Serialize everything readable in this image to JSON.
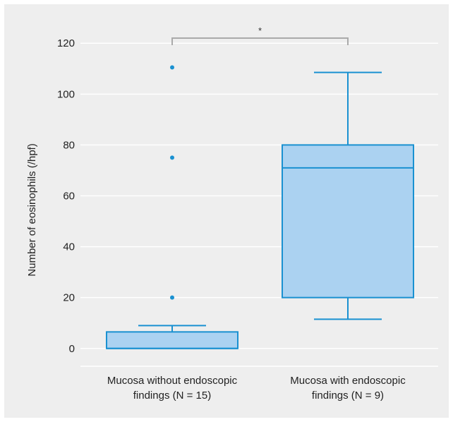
{
  "chart_data": {
    "type": "box",
    "title": "",
    "xlabel": "",
    "ylabel": "Number of eosinophils (/hpf)",
    "ylim": [
      -7,
      127
    ],
    "yticks": [
      0,
      20,
      40,
      60,
      80,
      100,
      120
    ],
    "grid": "horizontal",
    "categories": [
      [
        "Mucosa without endoscopic",
        "findings (N = 15)"
      ],
      [
        "Mucosa with endoscopic",
        "findings (N = 9)"
      ]
    ],
    "boxes": [
      {
        "whisker_low": 0,
        "q1": 0,
        "median": 0,
        "q3": 6.5,
        "whisker_high": 9,
        "outliers": [
          20,
          75,
          110.5
        ]
      },
      {
        "whisker_low": 11.5,
        "q1": 20,
        "median": 71,
        "q3": 80,
        "whisker_high": 108.5,
        "outliers": []
      }
    ],
    "significance": {
      "label": "*",
      "y": 122,
      "between": [
        0,
        1
      ]
    },
    "colors": {
      "box_fill": "#abd2f1",
      "box_stroke": "#1a91d1",
      "grid": "#ffffff",
      "bracket": "#aaaaaa",
      "panel": "#eeeeee"
    }
  }
}
